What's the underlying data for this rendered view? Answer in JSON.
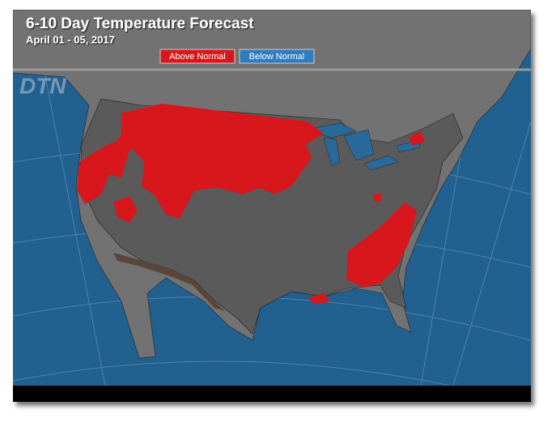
{
  "header": {
    "title": "6-10 Day Temperature Forecast",
    "subtitle": "April 01 - 05, 2017"
  },
  "legend": {
    "items": [
      {
        "label": "Above Normal",
        "color": "#d7171c"
      },
      {
        "label": "Below Normal",
        "color": "#2f7cc0"
      }
    ]
  },
  "logo": "DTN"
}
